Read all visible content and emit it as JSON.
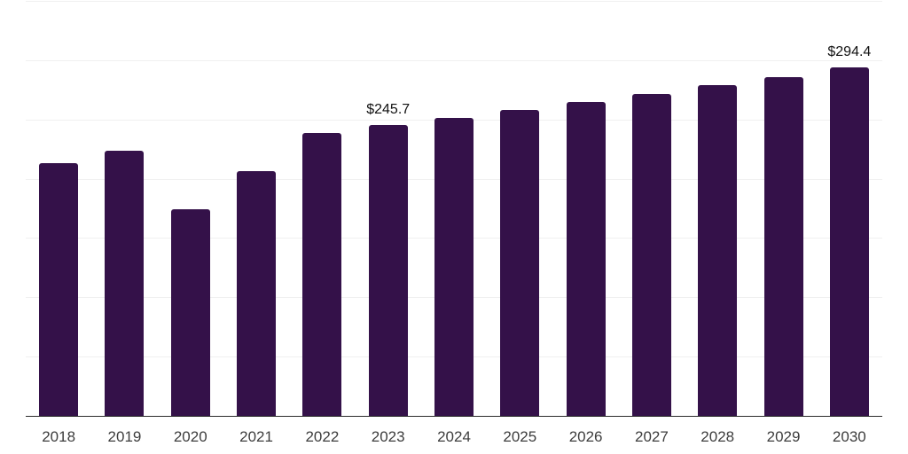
{
  "chart_data": {
    "type": "bar",
    "title": "",
    "xlabel": "",
    "ylabel": "",
    "categories": [
      "2018",
      "2019",
      "2020",
      "2021",
      "2022",
      "2023",
      "2024",
      "2025",
      "2026",
      "2027",
      "2028",
      "2029",
      "2030"
    ],
    "values": [
      214,
      224,
      175,
      207,
      239,
      245.7,
      252.1,
      258.7,
      265.4,
      272.4,
      279.5,
      286.8,
      294.4
    ],
    "data_labels": [
      {
        "category": "2023",
        "text": "$245.7"
      },
      {
        "category": "2030",
        "text": "$294.4"
      }
    ],
    "ylim": [
      0,
      350
    ],
    "gridline_step": 50,
    "grid": true,
    "legend": false,
    "y_axis_labels_visible": false,
    "colors": {
      "bar": "#341149",
      "axis_line": "#2b2b2b",
      "gridline": "#f0f0f0",
      "tick_label": "#3d3d3d",
      "data_label": "#111111",
      "background": "#ffffff"
    }
  }
}
